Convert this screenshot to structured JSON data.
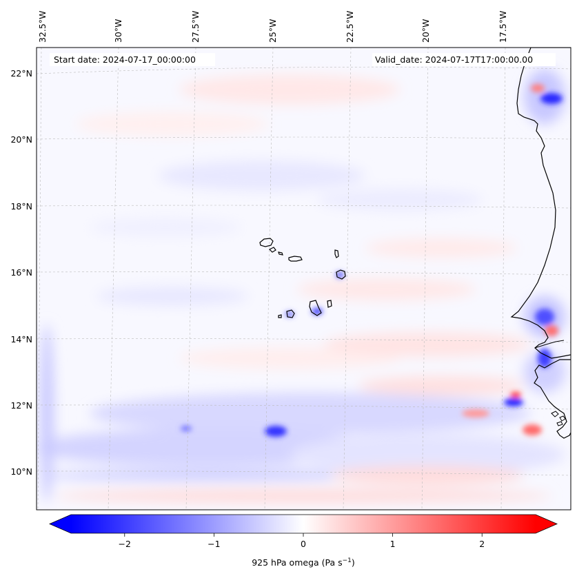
{
  "header": {
    "start_date": "Start date: 2024-07-17_00:00:00",
    "valid_date": "Valid_date: 2024-07-17T17:00:00.00"
  },
  "map": {
    "projection": "Lambert conformal",
    "variable": "925 hPa omega",
    "lon_labels": [
      "32.5°W",
      "30°W",
      "27.5°W",
      "25°W",
      "22.5°W",
      "20°W",
      "17.5°W"
    ],
    "lat_labels": [
      "22°N",
      "20°N",
      "18°N",
      "16°N",
      "14°N",
      "12°N",
      "10°N"
    ],
    "features": [
      "Cape Verde islands",
      "West African coastline"
    ]
  },
  "colorbar": {
    "label": "925 hPa omega (Pa s",
    "label_sup": "−1",
    "label_close": ")",
    "min": -2.6,
    "max": 2.6,
    "ticks": [
      "−2",
      "−1",
      "0",
      "1",
      "2"
    ],
    "tick_values": [
      -2,
      -1,
      0,
      1,
      2
    ],
    "cmap": "bwr",
    "colors": {
      "low": "#0000ff",
      "mid": "#ffffff",
      "high": "#ff0000"
    }
  }
}
